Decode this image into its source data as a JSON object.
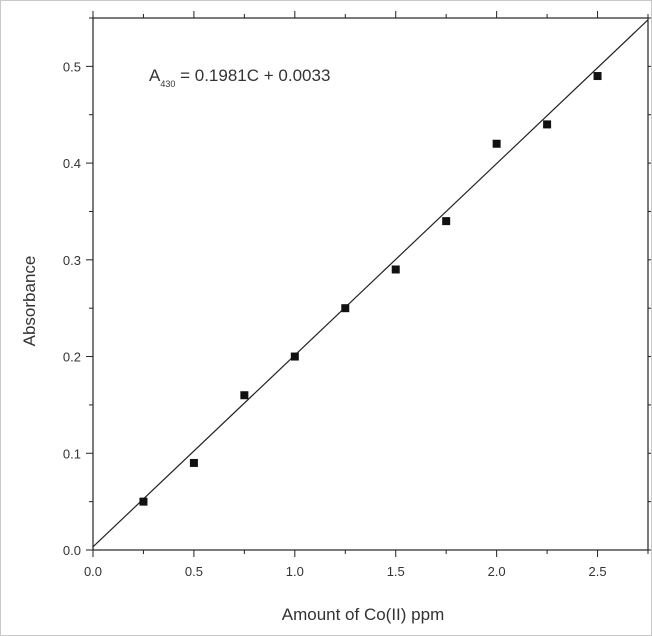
{
  "chart_data": {
    "type": "scatter",
    "title": "",
    "xlabel": "Amount of Co(II) ppm",
    "ylabel": "Absorbance",
    "xlim": [
      0.0,
      2.75
    ],
    "ylim": [
      0.0,
      0.55
    ],
    "xticks": [
      "0.0",
      "0.5",
      "1.0",
      "1.5",
      "2.0",
      "2.5"
    ],
    "yticks": [
      "0.0",
      "0.1",
      "0.2",
      "0.3",
      "0.4",
      "0.5"
    ],
    "grid": false,
    "equation": {
      "prefix": "A",
      "subscript": "430",
      "rest": " = 0.1981C + 0.0033"
    },
    "fit": {
      "slope": 0.1981,
      "intercept": 0.0033
    },
    "series": [
      {
        "x": [
          0.25,
          0.5,
          0.75,
          1.0,
          1.25,
          1.5,
          1.75,
          2.0,
          2.25,
          2.5
        ],
        "y": [
          0.05,
          0.09,
          0.16,
          0.2,
          0.25,
          0.29,
          0.34,
          0.42,
          0.44,
          0.49
        ]
      }
    ],
    "colors": {
      "marker": "#111111",
      "line": "#222222",
      "axis": "#222222",
      "text": "#333333"
    }
  }
}
